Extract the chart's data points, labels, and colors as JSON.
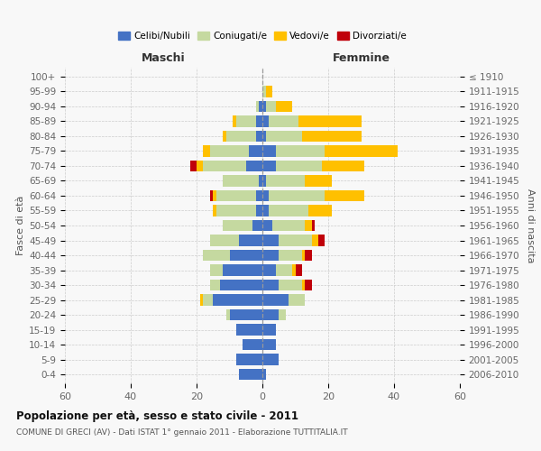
{
  "age_groups": [
    "0-4",
    "5-9",
    "10-14",
    "15-19",
    "20-24",
    "25-29",
    "30-34",
    "35-39",
    "40-44",
    "45-49",
    "50-54",
    "55-59",
    "60-64",
    "65-69",
    "70-74",
    "75-79",
    "80-84",
    "85-89",
    "90-94",
    "95-99",
    "100+"
  ],
  "birth_years": [
    "2006-2010",
    "2001-2005",
    "1996-2000",
    "1991-1995",
    "1986-1990",
    "1981-1985",
    "1976-1980",
    "1971-1975",
    "1966-1970",
    "1961-1965",
    "1956-1960",
    "1951-1955",
    "1946-1950",
    "1941-1945",
    "1936-1940",
    "1931-1935",
    "1926-1930",
    "1921-1925",
    "1916-1920",
    "1911-1915",
    "≤ 1910"
  ],
  "maschi": {
    "celibi": [
      7,
      8,
      6,
      8,
      10,
      15,
      13,
      12,
      10,
      7,
      3,
      2,
      2,
      1,
      5,
      4,
      2,
      2,
      1,
      0,
      0
    ],
    "coniugati": [
      0,
      0,
      0,
      0,
      1,
      3,
      3,
      4,
      8,
      9,
      9,
      12,
      12,
      11,
      13,
      12,
      9,
      6,
      1,
      0,
      0
    ],
    "vedovi": [
      0,
      0,
      0,
      0,
      0,
      1,
      0,
      0,
      0,
      0,
      0,
      1,
      1,
      0,
      2,
      2,
      1,
      1,
      0,
      0,
      0
    ],
    "divorziati": [
      0,
      0,
      0,
      0,
      0,
      0,
      0,
      0,
      0,
      0,
      0,
      0,
      1,
      0,
      2,
      0,
      0,
      0,
      0,
      0,
      0
    ]
  },
  "femmine": {
    "nubili": [
      1,
      5,
      4,
      4,
      5,
      8,
      5,
      4,
      5,
      5,
      3,
      2,
      2,
      1,
      4,
      4,
      1,
      2,
      1,
      0,
      0
    ],
    "coniugate": [
      0,
      0,
      0,
      0,
      2,
      5,
      7,
      5,
      7,
      10,
      10,
      12,
      17,
      12,
      14,
      15,
      11,
      9,
      3,
      1,
      0
    ],
    "vedove": [
      0,
      0,
      0,
      0,
      0,
      0,
      1,
      1,
      1,
      2,
      2,
      7,
      12,
      8,
      13,
      22,
      18,
      19,
      5,
      2,
      0
    ],
    "divorziate": [
      0,
      0,
      0,
      0,
      0,
      0,
      2,
      2,
      2,
      2,
      1,
      0,
      0,
      0,
      0,
      0,
      0,
      0,
      0,
      0,
      0
    ]
  },
  "colors": {
    "celibi_nubili": "#4472c4",
    "coniugati_e": "#c5d9a0",
    "vedovi_e": "#ffc000",
    "divorziati_e": "#c0000a"
  },
  "xlim": [
    -60,
    60
  ],
  "xticks": [
    -60,
    -40,
    -20,
    0,
    20,
    40,
    60
  ],
  "xticklabels": [
    "60",
    "40",
    "20",
    "0",
    "20",
    "40",
    "60"
  ],
  "title": "Popolazione per età, sesso e stato civile - 2011",
  "subtitle": "COMUNE DI GRECI (AV) - Dati ISTAT 1° gennaio 2011 - Elaborazione TUTTITALIA.IT",
  "ylabel_left": "Fasce di età",
  "ylabel_right": "Anni di nascita",
  "label_maschi": "Maschi",
  "label_femmine": "Femmine",
  "legend_labels": [
    "Celibi/Nubili",
    "Coniugati/e",
    "Vedovi/e",
    "Divorziati/e"
  ],
  "bg_color": "#f8f8f8",
  "bar_height": 0.75
}
